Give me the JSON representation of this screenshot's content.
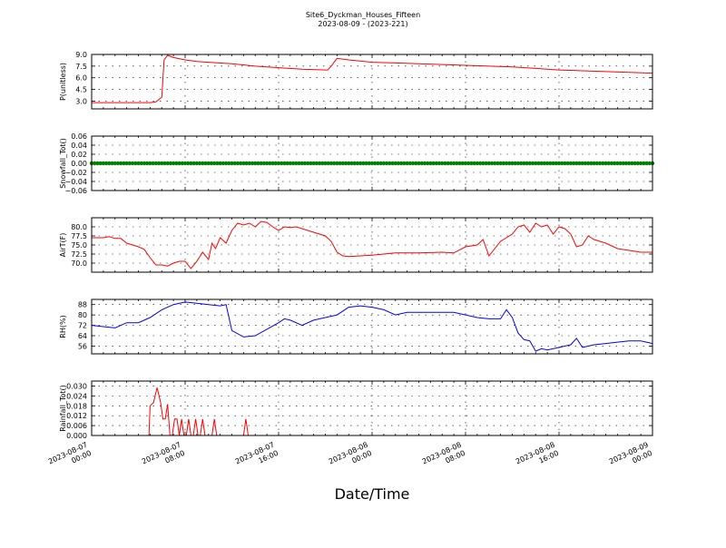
{
  "title_line1": "Site6_Dyckman_Houses_Fifteen",
  "title_line2": "2023-08-09 - (2023-221)",
  "xlabel": "Date/Time",
  "x_ticks": [
    {
      "t": 0,
      "l1": "2023-08-07",
      "l2": "00:00"
    },
    {
      "t": 8,
      "l1": "2023-08-07",
      "l2": "08:00"
    },
    {
      "t": 16,
      "l1": "2023-08-07",
      "l2": "16:00"
    },
    {
      "t": 24,
      "l1": "2023-08-08",
      "l2": "00:00"
    },
    {
      "t": 32,
      "l1": "2023-08-08",
      "l2": "08:00"
    },
    {
      "t": 40,
      "l1": "2023-08-08",
      "l2": "16:00"
    },
    {
      "t": 48,
      "l1": "2023-08-09",
      "l2": "00:00"
    }
  ],
  "chart_data": [
    {
      "type": "line",
      "ylabel": "P(unitless)",
      "color": "#ff0000",
      "ylim": [
        2.0,
        9.0
      ],
      "yticks": [
        3.0,
        4.5,
        6.0,
        7.5,
        9.0
      ],
      "tick_labels": [
        "3.0",
        "4.5",
        "6.0",
        "7.5",
        "9.0"
      ],
      "x": [
        0,
        2,
        4,
        5,
        5.5,
        6,
        6.2,
        6.5,
        7,
        8,
        9,
        10,
        12,
        14,
        16,
        18,
        20,
        20.2,
        20.5,
        21,
        22,
        24,
        26,
        28,
        30,
        32,
        34,
        36,
        38,
        40,
        42,
        44,
        46,
        48
      ],
      "y": [
        2.8,
        2.8,
        2.8,
        2.8,
        2.9,
        3.5,
        8.3,
        8.9,
        8.6,
        8.3,
        8.1,
        8.0,
        7.8,
        7.5,
        7.3,
        7.1,
        7.0,
        7.0,
        7.5,
        8.5,
        8.3,
        8.0,
        7.9,
        7.8,
        7.7,
        7.6,
        7.5,
        7.4,
        7.2,
        7.0,
        6.9,
        6.8,
        6.7,
        6.6
      ]
    },
    {
      "type": "line",
      "ylabel": "Snowfall_Tot()",
      "color": "#008000",
      "ylim": [
        -0.06,
        0.06
      ],
      "yticks": [
        -0.06,
        -0.04,
        -0.02,
        0.0,
        0.02,
        0.04,
        0.06
      ],
      "tick_labels": [
        "−0.06",
        "−0.04",
        "−0.02",
        "0.00",
        "0.02",
        "0.04",
        "0.06"
      ],
      "markers": true,
      "x": [
        0,
        48
      ],
      "y": [
        0,
        0
      ]
    },
    {
      "type": "line",
      "ylabel": "AirT(F)",
      "color": "#ff0000",
      "ylim": [
        67.5,
        82.5
      ],
      "yticks": [
        70.0,
        72.5,
        75.0,
        77.5,
        80.0
      ],
      "tick_labels": [
        "70.0",
        "72.5",
        "75.0",
        "77.5",
        "80.0"
      ],
      "x": [
        0,
        1,
        1.5,
        2,
        2.5,
        3,
        3.5,
        4,
        4.5,
        5,
        5.5,
        6,
        6.5,
        7,
        7.5,
        8,
        8.5,
        9,
        9.5,
        10,
        10.3,
        10.6,
        11,
        11.5,
        12,
        12.5,
        13,
        13.5,
        14,
        14.5,
        15,
        15.5,
        16,
        16.5,
        17,
        17.5,
        18,
        19,
        20,
        20.5,
        21,
        21.5,
        22,
        23,
        24,
        26,
        28,
        30,
        31,
        32,
        33,
        33.5,
        34,
        35,
        36,
        36.5,
        37,
        37.5,
        38,
        38.5,
        39,
        39.5,
        40,
        40.5,
        41,
        41.5,
        42,
        42.5,
        43,
        44,
        45,
        46,
        47,
        48
      ],
      "y": [
        77.0,
        77.0,
        77.3,
        76.8,
        76.8,
        75.5,
        75.0,
        74.5,
        73.8,
        71.5,
        69.5,
        69.5,
        69.2,
        70.0,
        70.5,
        70.5,
        68.5,
        70.5,
        73.0,
        71.0,
        75.5,
        74.0,
        77.0,
        75.5,
        79.0,
        81.0,
        80.5,
        81.0,
        80.0,
        81.5,
        81.2,
        80.0,
        79.0,
        80.0,
        79.8,
        80.0,
        79.5,
        78.5,
        77.5,
        76.0,
        73.0,
        72.0,
        71.8,
        72.0,
        72.2,
        72.8,
        72.8,
        73.0,
        72.8,
        74.5,
        75.0,
        76.5,
        72.0,
        76.0,
        78.0,
        80.0,
        80.5,
        78.5,
        81.0,
        80.0,
        80.5,
        78.0,
        80.0,
        79.5,
        78.0,
        74.5,
        75.0,
        77.5,
        76.5,
        75.5,
        74.0,
        73.5,
        73.0,
        73.0
      ]
    },
    {
      "type": "line",
      "ylabel": "RH(%)",
      "color": "#0000ff",
      "ylim": [
        50,
        92
      ],
      "yticks": [
        56,
        64,
        72,
        80,
        88
      ],
      "tick_labels": [
        "56",
        "64",
        "72",
        "80",
        "88"
      ],
      "x": [
        0,
        1,
        2,
        3,
        4,
        5,
        6,
        7,
        8,
        9,
        10,
        11,
        11.5,
        12,
        13,
        14,
        15,
        16,
        16.5,
        17,
        18,
        19,
        20,
        21,
        22,
        23,
        24,
        25,
        26,
        27,
        28,
        29,
        30,
        31,
        32,
        33,
        34,
        35,
        35.5,
        36,
        36.5,
        37,
        37.5,
        38,
        38.5,
        39,
        40,
        41,
        41.5,
        42,
        43,
        44,
        45,
        46,
        47,
        48
      ],
      "y": [
        72,
        71,
        70,
        74,
        74,
        78,
        84,
        88,
        90,
        89,
        88,
        87,
        88,
        68,
        63,
        64,
        69,
        74,
        77,
        76,
        72,
        76,
        78,
        80,
        86,
        87,
        86,
        84,
        80,
        82,
        82,
        82,
        82,
        82,
        80,
        78,
        77,
        77,
        84,
        78,
        66,
        61,
        60,
        52,
        54,
        53,
        55,
        57,
        62,
        55,
        57,
        58,
        59,
        60,
        60,
        58
      ]
    },
    {
      "type": "line",
      "ylabel": "Rainfall_Tot()",
      "color": "#ff0000",
      "ylim": [
        0.0,
        0.033
      ],
      "yticks": [
        0.0,
        0.006,
        0.012,
        0.018,
        0.024,
        0.03
      ],
      "tick_labels": [
        "0.000",
        "0.006",
        "0.012",
        "0.018",
        "0.024",
        "0.030"
      ],
      "x": [
        0,
        4.9,
        5,
        5.3,
        5.6,
        5.9,
        6.1,
        6.3,
        6.5,
        6.7,
        6.9,
        7.1,
        7.3,
        7.5,
        7.7,
        7.9,
        8.1,
        8.3,
        8.5,
        8.7,
        8.9,
        9.1,
        9.3,
        9.5,
        9.7,
        9.9,
        10.1,
        10.3,
        10.5,
        10.7,
        10.9,
        11.1,
        11.3,
        11.5,
        11.7,
        13.0,
        13.2,
        13.4,
        48
      ],
      "y": [
        0.0,
        0.0,
        0.018,
        0.02,
        0.029,
        0.02,
        0.01,
        0.01,
        0.019,
        0.0,
        0.0,
        0.01,
        0.01,
        0.0,
        0.01,
        0.0,
        0.0,
        0.01,
        0.0,
        0.0,
        0.01,
        0.0,
        0.0,
        0.01,
        0.0,
        0.0,
        0.0,
        0.0,
        0.01,
        0.0,
        0.0,
        0.0,
        0.0,
        0.0,
        0.0,
        0.0,
        0.01,
        0.0,
        0.0
      ]
    }
  ]
}
